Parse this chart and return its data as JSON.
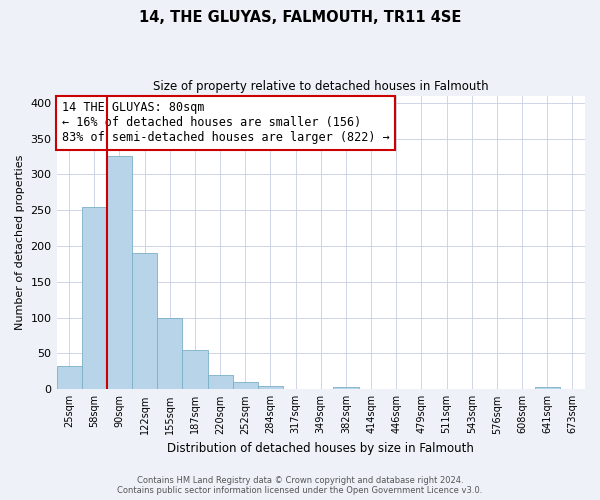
{
  "title": "14, THE GLUYAS, FALMOUTH, TR11 4SE",
  "subtitle": "Size of property relative to detached houses in Falmouth",
  "xlabel": "Distribution of detached houses by size in Falmouth",
  "ylabel": "Number of detached properties",
  "bar_labels": [
    "25sqm",
    "58sqm",
    "90sqm",
    "122sqm",
    "155sqm",
    "187sqm",
    "220sqm",
    "252sqm",
    "284sqm",
    "317sqm",
    "349sqm",
    "382sqm",
    "414sqm",
    "446sqm",
    "479sqm",
    "511sqm",
    "543sqm",
    "576sqm",
    "608sqm",
    "641sqm",
    "673sqm"
  ],
  "bar_values": [
    32,
    255,
    325,
    190,
    100,
    55,
    20,
    10,
    5,
    0,
    0,
    3,
    0,
    0,
    0,
    0,
    0,
    0,
    0,
    3,
    0
  ],
  "bar_color": "#b8d4e8",
  "bar_edge_color": "#7aafc8",
  "vline_color": "#cc0000",
  "vline_x": 1.5,
  "annotation_text": "14 THE GLUYAS: 80sqm\n← 16% of detached houses are smaller (156)\n83% of semi-detached houses are larger (822) →",
  "ylim": [
    0,
    410
  ],
  "yticks": [
    0,
    50,
    100,
    150,
    200,
    250,
    300,
    350,
    400
  ],
  "footer_line1": "Contains HM Land Registry data © Crown copyright and database right 2024.",
  "footer_line2": "Contains public sector information licensed under the Open Government Licence v3.0.",
  "bg_color": "#eef2f8",
  "plot_bg_color": "#ffffff",
  "grid_color": "#c8cfe0"
}
